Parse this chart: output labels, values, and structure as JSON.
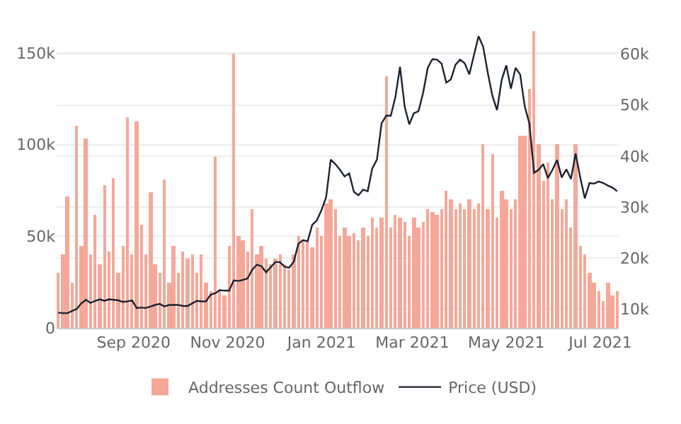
{
  "chart_data": {
    "type": "bar",
    "x": [
      "2020-07-14",
      "2020-07-17",
      "2020-07-20",
      "2020-07-23",
      "2020-07-26",
      "2020-07-29",
      "2020-08-01",
      "2020-08-04",
      "2020-08-07",
      "2020-08-10",
      "2020-08-13",
      "2020-08-16",
      "2020-08-19",
      "2020-08-22",
      "2020-08-25",
      "2020-08-28",
      "2020-08-31",
      "2020-09-03",
      "2020-09-06",
      "2020-09-09",
      "2020-09-12",
      "2020-09-15",
      "2020-09-18",
      "2020-09-21",
      "2020-09-24",
      "2020-09-27",
      "2020-09-30",
      "2020-10-03",
      "2020-10-06",
      "2020-10-09",
      "2020-10-12",
      "2020-10-15",
      "2020-10-18",
      "2020-10-21",
      "2020-10-24",
      "2020-10-27",
      "2020-10-30",
      "2020-11-02",
      "2020-11-05",
      "2020-11-08",
      "2020-11-11",
      "2020-11-14",
      "2020-11-17",
      "2020-11-20",
      "2020-11-23",
      "2020-11-26",
      "2020-11-29",
      "2020-12-02",
      "2020-12-05",
      "2020-12-08",
      "2020-12-11",
      "2020-12-14",
      "2020-12-17",
      "2020-12-20",
      "2020-12-23",
      "2020-12-26",
      "2020-12-29",
      "2021-01-01",
      "2021-01-04",
      "2021-01-07",
      "2021-01-10",
      "2021-01-13",
      "2021-01-16",
      "2021-01-19",
      "2021-01-22",
      "2021-01-25",
      "2021-01-28",
      "2021-01-31",
      "2021-02-03",
      "2021-02-06",
      "2021-02-09",
      "2021-02-12",
      "2021-02-15",
      "2021-02-18",
      "2021-02-21",
      "2021-02-24",
      "2021-02-27",
      "2021-03-02",
      "2021-03-05",
      "2021-03-08",
      "2021-03-11",
      "2021-03-14",
      "2021-03-17",
      "2021-03-20",
      "2021-03-23",
      "2021-03-26",
      "2021-03-29",
      "2021-04-01",
      "2021-04-04",
      "2021-04-07",
      "2021-04-10",
      "2021-04-13",
      "2021-04-16",
      "2021-04-19",
      "2021-04-22",
      "2021-04-25",
      "2021-04-28",
      "2021-05-01",
      "2021-05-04",
      "2021-05-07",
      "2021-05-10",
      "2021-05-13",
      "2021-05-16",
      "2021-05-19",
      "2021-05-22",
      "2021-05-25",
      "2021-05-28",
      "2021-05-31",
      "2021-06-03",
      "2021-06-06",
      "2021-06-09",
      "2021-06-12",
      "2021-06-15",
      "2021-06-18",
      "2021-06-21",
      "2021-06-24",
      "2021-06-27",
      "2021-06-30",
      "2021-07-03",
      "2021-07-06",
      "2021-07-09",
      "2021-07-12"
    ],
    "series": [
      {
        "name": "Price (USD)",
        "type": "line",
        "axis": "y2",
        "color": "#1c2331",
        "values": [
          9300,
          9200,
          9200,
          9600,
          10000,
          11100,
          11800,
          11200,
          11600,
          11900,
          11600,
          11900,
          11800,
          11700,
          11400,
          11500,
          11700,
          10200,
          10300,
          10200,
          10500,
          10800,
          11000,
          10500,
          10800,
          10800,
          10800,
          10600,
          10600,
          11100,
          11600,
          11500,
          11500,
          12800,
          13100,
          13700,
          13600,
          13600,
          15600,
          15500,
          15700,
          16000,
          17700,
          18700,
          18400,
          17200,
          18200,
          19200,
          19200,
          18300,
          18100,
          19300,
          22800,
          23500,
          23300,
          26500,
          27400,
          29400,
          31900,
          39300,
          38400,
          37300,
          36000,
          36600,
          33000,
          32300,
          33400,
          33100,
          37600,
          39300,
          46400,
          47900,
          47900,
          51600,
          57500,
          49700,
          46200,
          48400,
          48800,
          52400,
          57300,
          59000,
          58900,
          58100,
          54400,
          55000,
          57900,
          58900,
          58200,
          56000,
          59800,
          63500,
          61400,
          56300,
          51800,
          49000,
          54900,
          57800,
          53200,
          57300,
          56000,
          49700,
          46400,
          36700,
          37300,
          38400,
          35700,
          37300,
          39200,
          35800,
          37400,
          35500,
          40500,
          35800,
          31700,
          34700,
          34600,
          35000,
          34700,
          34200,
          33800,
          33100
        ]
      },
      {
        "name": "Addresses Count Outflow",
        "color": "#f5a898",
        "values": [
          30000,
          40000,
          72000,
          25000,
          110000,
          45000,
          103000,
          40000,
          62000,
          35000,
          78000,
          42000,
          82000,
          30000,
          45000,
          115000,
          40000,
          113000,
          56000,
          40000,
          74000,
          35000,
          30000,
          81000,
          25000,
          45000,
          30000,
          42000,
          38000,
          40000,
          30000,
          40000,
          25000,
          20000,
          93000,
          20000,
          18000,
          45000,
          150000,
          50000,
          48000,
          42000,
          65000,
          40000,
          45000,
          38000,
          35000,
          38000,
          40000,
          35000,
          32000,
          40000,
          50000,
          48000,
          47000,
          44000,
          55000,
          50000,
          68000,
          70000,
          65000,
          50000,
          55000,
          50000,
          52000,
          48000,
          55000,
          50000,
          60000,
          55000,
          60000,
          137000,
          55000,
          62000,
          60000,
          58000,
          50000,
          60000,
          55000,
          58000,
          65000,
          63000,
          62000,
          65000,
          75000,
          70000,
          65000,
          68000,
          65000,
          70000,
          65000,
          68000,
          100000,
          65000,
          95000,
          60000,
          75000,
          70000,
          65000,
          70000,
          105000,
          105000,
          130000,
          162000,
          100000,
          80000,
          90000,
          70000,
          100000,
          65000,
          70000,
          55000,
          100000,
          45000,
          40000,
          30000,
          25000,
          20000,
          15000,
          25000,
          18000,
          20000
        ]
      }
    ],
    "xlim": [
      "2020-07-13",
      "2021-07-13"
    ],
    "xticks": [
      {
        "value": "2020-09-01",
        "label": "Sep 2020"
      },
      {
        "value": "2020-11-01",
        "label": "Nov 2020"
      },
      {
        "value": "2021-01-01",
        "label": "Jan 2021"
      },
      {
        "value": "2021-03-01",
        "label": "Mar 2021"
      },
      {
        "value": "2021-05-01",
        "label": "May 2021"
      },
      {
        "value": "2021-07-01",
        "label": "Jul 2021"
      }
    ],
    "ylim": [
      0,
      162000
    ],
    "yticks": [
      0,
      {
        "value": 50000,
        "label": "50k"
      },
      {
        "value": 100000,
        "label": "100k"
      },
      {
        "value": 150000,
        "label": "150k"
      }
    ],
    "y2lim": [
      6300,
      64500
    ],
    "y2ticks": [
      {
        "value": 10000,
        "label": "10k"
      },
      {
        "value": 20000,
        "label": "20k"
      },
      {
        "value": 30000,
        "label": "30k"
      },
      {
        "value": 40000,
        "label": "40k"
      },
      {
        "value": 50000,
        "label": "50k"
      },
      {
        "value": 60000,
        "label": "60k"
      }
    ],
    "grid": "y",
    "legend": "bottom"
  }
}
